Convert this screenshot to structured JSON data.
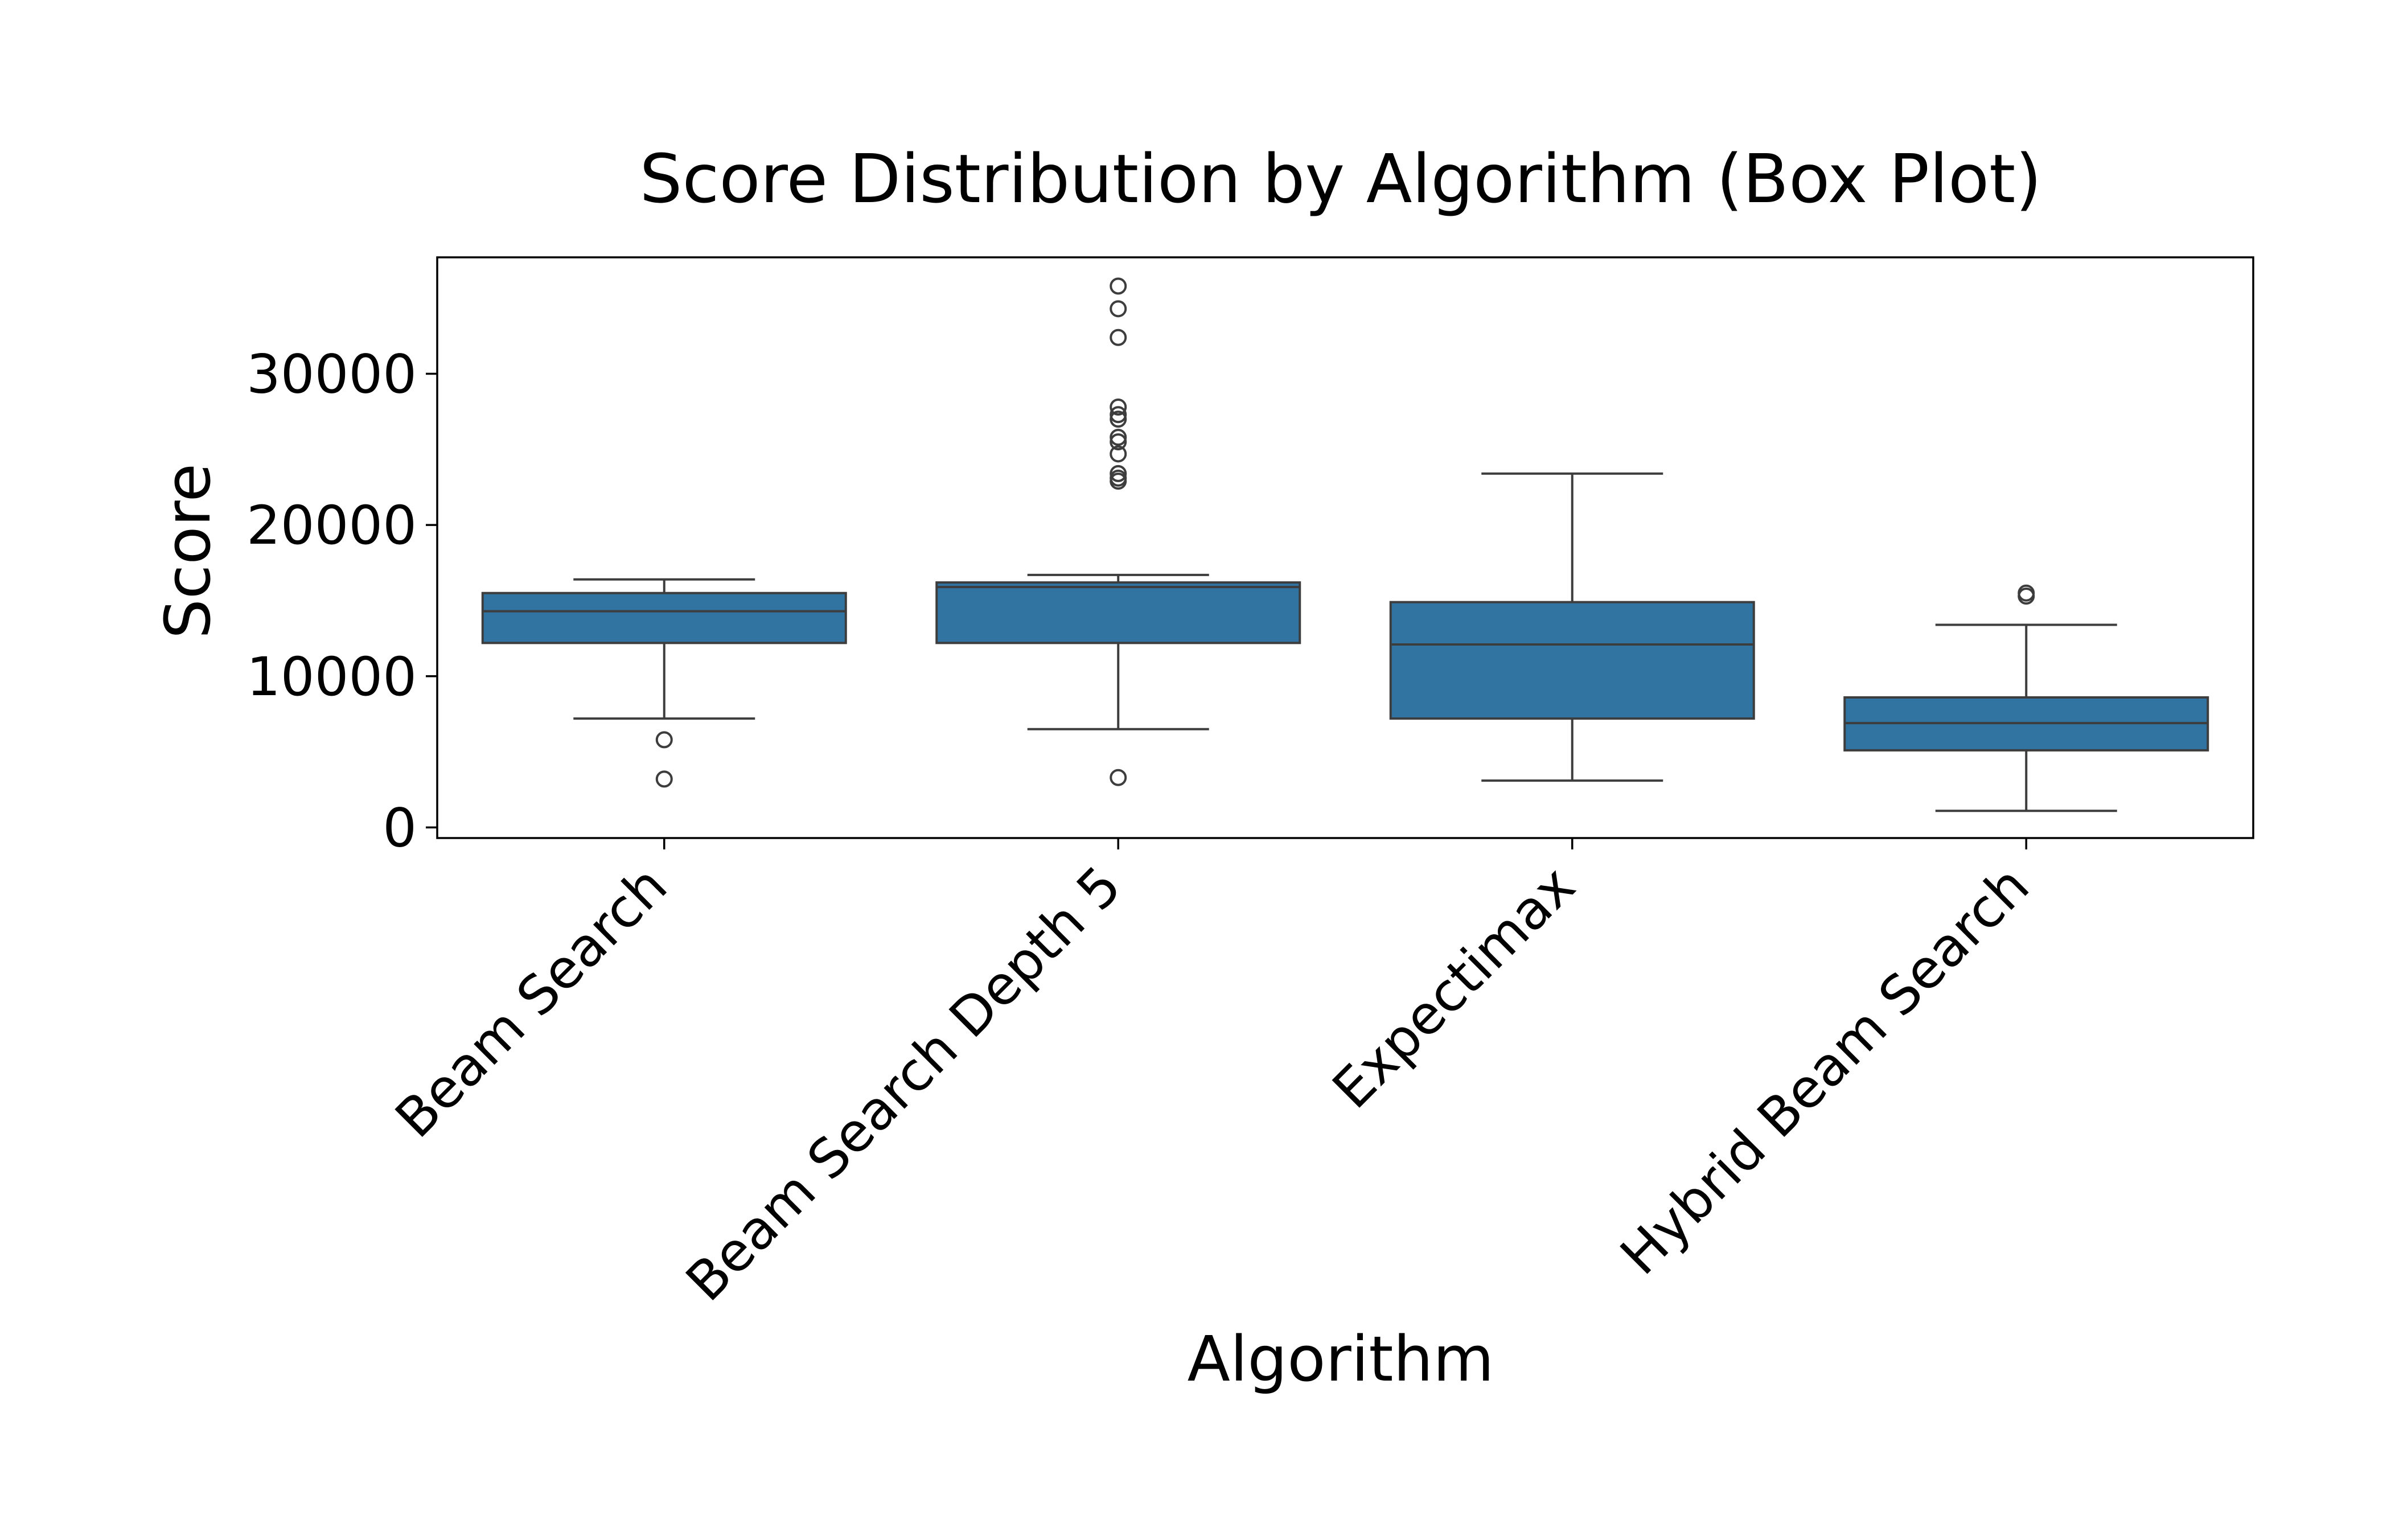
{
  "chart_data": {
    "type": "box",
    "title": "Score Distribution by Algorithm (Box Plot)",
    "xlabel": "Algorithm",
    "ylabel": "Score",
    "categories": [
      "Beam Search",
      "Beam Search Depth 5",
      "Expectimax",
      "Hybrid Beam Search"
    ],
    "ylim": [
      -700,
      37700
    ],
    "yticks": [
      0,
      10000,
      20000,
      30000
    ],
    "ytick_labels": [
      "0",
      "10000",
      "20000",
      "30000"
    ],
    "grid": false,
    "legend": "none",
    "box_color": "#3274a1",
    "line_color": "#3d3d3d",
    "boxes": [
      {
        "category": "Beam Search",
        "whisker_low": 7200,
        "q1": 12200,
        "median": 14300,
        "q3": 15500,
        "whisker_high": 16400,
        "outliers": [
          5800,
          3200
        ]
      },
      {
        "category": "Beam Search Depth 5",
        "whisker_low": 6500,
        "q1": 12200,
        "median": 15900,
        "q3": 16200,
        "whisker_high": 16700,
        "outliers": [
          3300,
          22900,
          23100,
          23400,
          24700,
          25500,
          25800,
          27000,
          27300,
          27800,
          32400,
          34300,
          35800
        ]
      },
      {
        "category": "Expectimax",
        "whisker_low": 3100,
        "q1": 7200,
        "median": 12100,
        "q3": 14900,
        "whisker_high": 23400,
        "outliers": []
      },
      {
        "category": "Hybrid Beam Search",
        "whisker_low": 1100,
        "q1": 5100,
        "median": 6900,
        "q3": 8600,
        "whisker_high": 13400,
        "outliers": [
          15300,
          15500
        ]
      }
    ]
  }
}
